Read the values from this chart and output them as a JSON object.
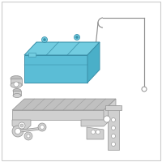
{
  "background_color": "#ffffff",
  "border_color": "#cccccc",
  "battery_fill": "#5bbdd6",
  "battery_stroke": "#3a8fa8",
  "battery_top_fill": "#72cce0",
  "battery_side_fill": "#4aafc8",
  "hardware_fill": "#d0d0d0",
  "hardware_stroke": "#909090",
  "hardware_fill2": "#c0c0c0",
  "vent_color": "#909090",
  "fig_size": [
    2.0,
    2.0
  ],
  "dpi": 100
}
